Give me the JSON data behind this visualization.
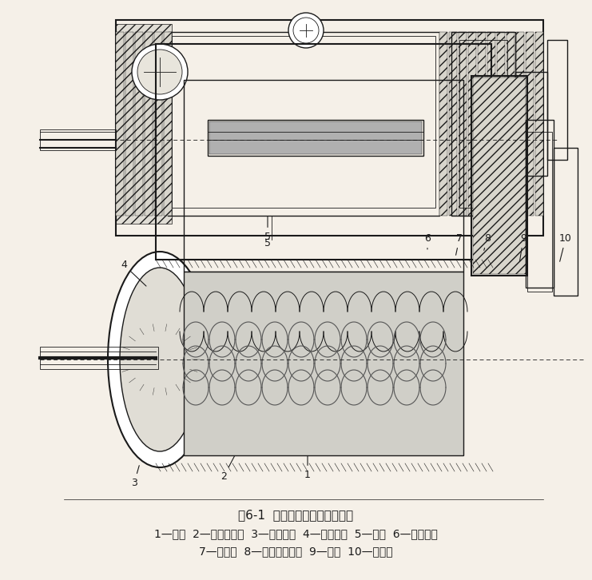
{
  "title": "图6-1  螺杆式制冷压缩机剖面图",
  "caption_line1": "1—机体  2—阴、阳转子  3—吸气端座  4—平衡活塞  5—滑阀  6—排气端座",
  "caption_line2": "7—主轴承  8—径向止推轴承  9—轴封  10—联轴器",
  "bg_color": "#f5f0e8",
  "drawing_color": "#1a1a1a",
  "label_numbers": [
    "1",
    "2",
    "3",
    "4",
    "5",
    "6",
    "7",
    "8",
    "9",
    "10"
  ],
  "figsize": [
    7.41,
    7.26
  ],
  "dpi": 100,
  "title_fontsize": 11,
  "caption_fontsize": 10
}
